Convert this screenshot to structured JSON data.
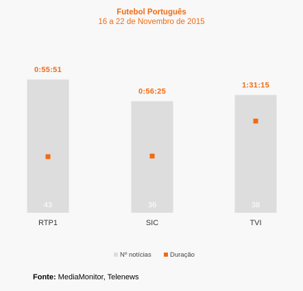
{
  "chart_data": {
    "type": "bar",
    "title": "Futebol Português",
    "subtitle": "16 a 22 de Novembro de 2015",
    "categories": [
      "RTP1",
      "SIC",
      "TVI"
    ],
    "series": [
      {
        "name": "Nº notícias",
        "type": "bar",
        "values": [
          43,
          36,
          38
        ],
        "color": "#dddddd",
        "ylim": [
          0,
          45.4
        ]
      },
      {
        "name": "Duração",
        "type": "scatter",
        "values": [
          "0:55:51",
          "0:56:25",
          "1:31:15"
        ],
        "values_seconds": [
          3351,
          3385,
          5475
        ],
        "color": "#f26a10",
        "ylim": [
          0,
          8400
        ]
      }
    ],
    "legend_position": "bottom-center",
    "grid": false
  },
  "footer": {
    "source_label": "Fonte:",
    "source_text": " MediaMonitor, Telenews"
  }
}
